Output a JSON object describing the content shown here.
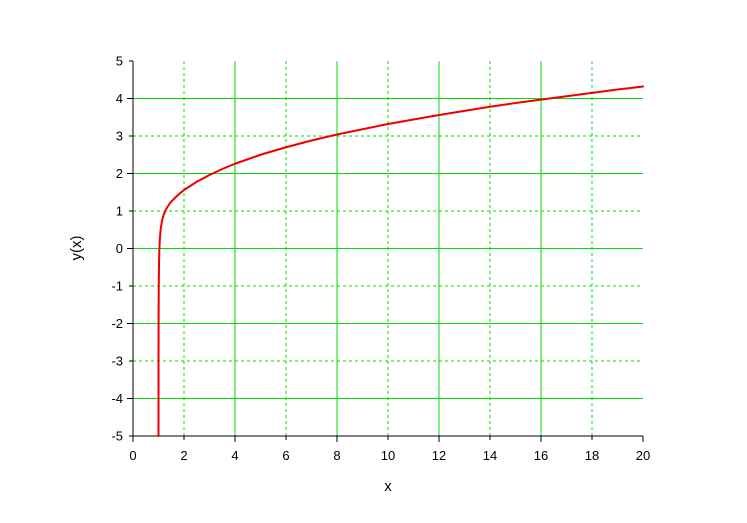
{
  "chart_data": {
    "type": "line",
    "title": "",
    "xlabel": "x",
    "ylabel": "y(x)",
    "xlim": [
      0,
      20
    ],
    "ylim": [
      -5,
      5
    ],
    "x_ticks": [
      "0",
      "2",
      "4",
      "6",
      "8",
      "10",
      "12",
      "14",
      "16",
      "18",
      "20"
    ],
    "y_ticks": [
      "-5",
      "-4",
      "-3",
      "-2",
      "-1",
      "0",
      "1",
      "2",
      "3",
      "4",
      "5"
    ],
    "grid": {
      "major": true,
      "minor": true,
      "major_style": "solid",
      "minor_style": "dashed",
      "color": "#00dd00"
    },
    "series": [
      {
        "color": "#ee0000",
        "x": [
          1.0,
          1.001,
          1.005,
          1.01,
          1.02,
          1.03,
          1.05,
          1.08,
          1.1,
          1.15,
          1.2,
          1.3,
          1.4,
          1.5,
          1.75,
          2.0,
          2.5,
          3.0,
          3.5,
          4.0,
          5.0,
          6.0,
          7.0,
          8.0,
          9.0,
          10.0,
          11.0,
          12.0,
          13.0,
          14.0,
          15.0,
          16.0,
          17.0,
          18.0,
          19.0,
          20.0
        ],
        "y": [
          -5.0,
          -3.0,
          -1.62,
          -1.0,
          -0.43,
          -0.1,
          0.23,
          0.48,
          0.59,
          0.77,
          0.89,
          1.05,
          1.16,
          1.25,
          1.42,
          1.56,
          1.78,
          1.96,
          2.12,
          2.26,
          2.5,
          2.7,
          2.88,
          3.04,
          3.18,
          3.32,
          3.44,
          3.56,
          3.67,
          3.78,
          3.88,
          3.97,
          4.06,
          4.15,
          4.24,
          4.32
        ]
      }
    ]
  }
}
